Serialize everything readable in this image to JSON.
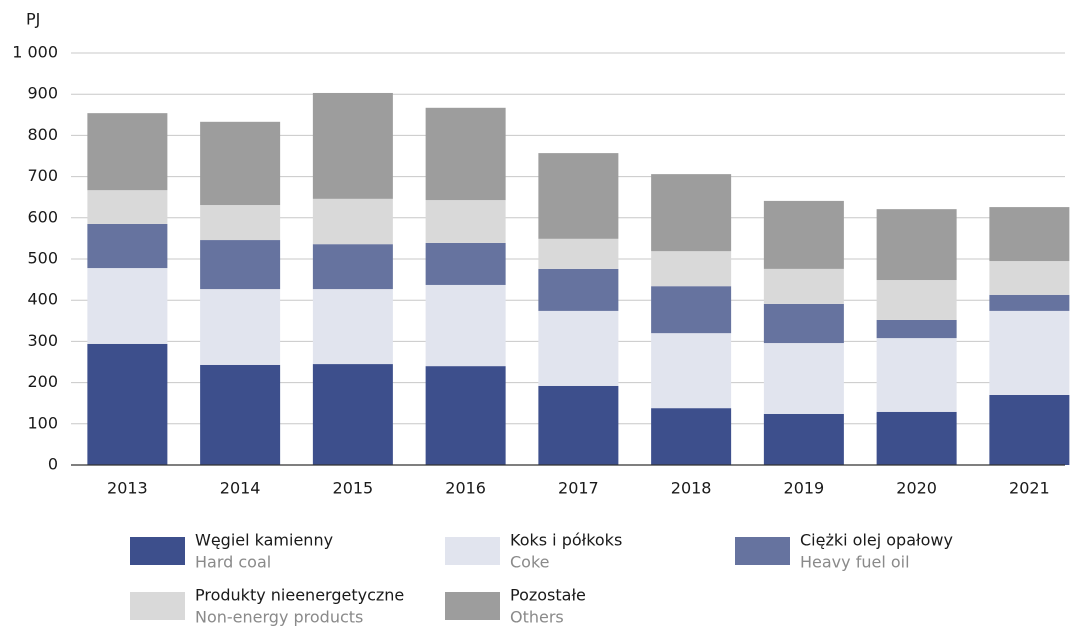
{
  "chart_data": {
    "type": "stacked_bar",
    "y_label": "PJ",
    "categories": [
      "2013",
      "2014",
      "2015",
      "2016",
      "2017",
      "2018",
      "2019",
      "2020",
      "2021"
    ],
    "series": [
      {
        "name": "Węgiel kamienny",
        "name_en": "Hard coal",
        "color": "#3d4f8c",
        "values": [
          294,
          243,
          245,
          240,
          192,
          138,
          124,
          129,
          170
        ]
      },
      {
        "name": "Koks i półkoks",
        "name_en": "Coke",
        "color": "#e1e4ee",
        "values": [
          184,
          184,
          182,
          197,
          182,
          182,
          172,
          179,
          204
        ]
      },
      {
        "name": "Ciężki olej opałowy",
        "name_en": "Heavy fuel oil",
        "color": "#66739f",
        "values": [
          107,
          119,
          109,
          102,
          102,
          114,
          95,
          44,
          39
        ]
      },
      {
        "name": "Produkty nieenergetyczne",
        "name_en": "Non-energy products",
        "color": "#d9d9d9",
        "values": [
          82,
          85,
          110,
          104,
          73,
          85,
          85,
          97,
          82
        ]
      },
      {
        "name": "Pozostałe",
        "name_en": "Others",
        "color": "#9d9d9d",
        "values": [
          187,
          202,
          257,
          224,
          208,
          187,
          165,
          172,
          131
        ]
      }
    ],
    "ylim": [
      0,
      1000
    ],
    "yticks": [
      0,
      100,
      200,
      300,
      400,
      500,
      600,
      700,
      800,
      900,
      {
        "value": 1000,
        "label": "1 000"
      }
    ],
    "grid": true
  }
}
